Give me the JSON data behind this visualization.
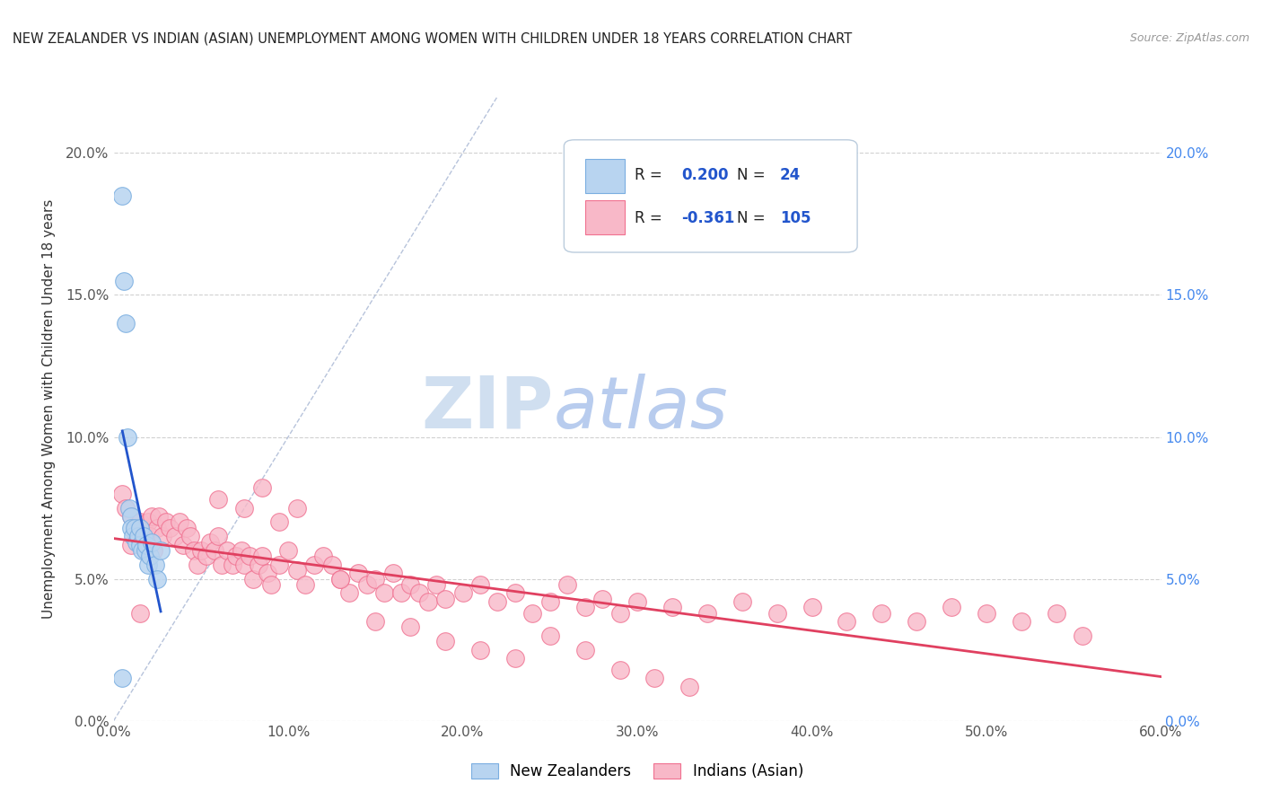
{
  "title": "NEW ZEALANDER VS INDIAN (ASIAN) UNEMPLOYMENT AMONG WOMEN WITH CHILDREN UNDER 18 YEARS CORRELATION CHART",
  "source": "Source: ZipAtlas.com",
  "ylabel": "Unemployment Among Women with Children Under 18 years",
  "xlim": [
    0.0,
    0.6
  ],
  "ylim": [
    0.0,
    0.22
  ],
  "xticks": [
    0.0,
    0.1,
    0.2,
    0.3,
    0.4,
    0.5,
    0.6
  ],
  "xtick_labels": [
    "0.0%",
    "10.0%",
    "20.0%",
    "30.0%",
    "40.0%",
    "50.0%",
    "60.0%"
  ],
  "yticks": [
    0.0,
    0.05,
    0.1,
    0.15,
    0.2
  ],
  "ytick_labels": [
    "0.0%",
    "5.0%",
    "10.0%",
    "15.0%",
    "20.0%"
  ],
  "legend_r_nz": "0.200",
  "legend_n_nz": "24",
  "legend_r_ind": "-0.361",
  "legend_n_ind": "105",
  "nz_fill": "#b8d4f0",
  "nz_edge": "#7aaee0",
  "ind_fill": "#f8b8c8",
  "ind_edge": "#f07090",
  "nz_trend_color": "#2255cc",
  "ind_trend_color": "#e04060",
  "ref_line_color": "#99aacc",
  "watermark_color": "#d0dff0",
  "background_color": "#ffffff",
  "legend_text_color": "#222222",
  "legend_val_color": "#2255cc",
  "nz_x": [
    0.005,
    0.006,
    0.007,
    0.008,
    0.009,
    0.01,
    0.01,
    0.011,
    0.012,
    0.013,
    0.014,
    0.015,
    0.015,
    0.016,
    0.017,
    0.018,
    0.019,
    0.02,
    0.021,
    0.022,
    0.024,
    0.025,
    0.027,
    0.005
  ],
  "nz_y": [
    0.185,
    0.155,
    0.14,
    0.1,
    0.075,
    0.072,
    0.068,
    0.065,
    0.068,
    0.063,
    0.065,
    0.068,
    0.062,
    0.06,
    0.065,
    0.06,
    0.062,
    0.055,
    0.058,
    0.063,
    0.055,
    0.05,
    0.06,
    0.015
  ],
  "ind_x": [
    0.005,
    0.007,
    0.01,
    0.012,
    0.014,
    0.015,
    0.016,
    0.017,
    0.018,
    0.019,
    0.02,
    0.021,
    0.022,
    0.023,
    0.025,
    0.026,
    0.028,
    0.03,
    0.032,
    0.035,
    0.038,
    0.04,
    0.042,
    0.044,
    0.046,
    0.048,
    0.05,
    0.053,
    0.055,
    0.058,
    0.06,
    0.062,
    0.065,
    0.068,
    0.07,
    0.073,
    0.075,
    0.078,
    0.08,
    0.083,
    0.085,
    0.088,
    0.09,
    0.095,
    0.1,
    0.105,
    0.11,
    0.115,
    0.12,
    0.125,
    0.13,
    0.135,
    0.14,
    0.145,
    0.15,
    0.155,
    0.16,
    0.165,
    0.17,
    0.175,
    0.18,
    0.185,
    0.19,
    0.2,
    0.21,
    0.22,
    0.23,
    0.24,
    0.25,
    0.26,
    0.27,
    0.28,
    0.29,
    0.3,
    0.32,
    0.34,
    0.36,
    0.38,
    0.4,
    0.42,
    0.44,
    0.46,
    0.48,
    0.5,
    0.52,
    0.54,
    0.555,
    0.06,
    0.075,
    0.085,
    0.095,
    0.105,
    0.13,
    0.15,
    0.17,
    0.19,
    0.21,
    0.23,
    0.25,
    0.27,
    0.29,
    0.31,
    0.33,
    0.01,
    0.015
  ],
  "ind_y": [
    0.08,
    0.075,
    0.072,
    0.068,
    0.065,
    0.07,
    0.062,
    0.068,
    0.065,
    0.06,
    0.07,
    0.065,
    0.072,
    0.06,
    0.068,
    0.072,
    0.065,
    0.07,
    0.068,
    0.065,
    0.07,
    0.062,
    0.068,
    0.065,
    0.06,
    0.055,
    0.06,
    0.058,
    0.063,
    0.06,
    0.065,
    0.055,
    0.06,
    0.055,
    0.058,
    0.06,
    0.055,
    0.058,
    0.05,
    0.055,
    0.058,
    0.052,
    0.048,
    0.055,
    0.06,
    0.053,
    0.048,
    0.055,
    0.058,
    0.055,
    0.05,
    0.045,
    0.052,
    0.048,
    0.05,
    0.045,
    0.052,
    0.045,
    0.048,
    0.045,
    0.042,
    0.048,
    0.043,
    0.045,
    0.048,
    0.042,
    0.045,
    0.038,
    0.042,
    0.048,
    0.04,
    0.043,
    0.038,
    0.042,
    0.04,
    0.038,
    0.042,
    0.038,
    0.04,
    0.035,
    0.038,
    0.035,
    0.04,
    0.038,
    0.035,
    0.038,
    0.03,
    0.078,
    0.075,
    0.082,
    0.07,
    0.075,
    0.05,
    0.035,
    0.033,
    0.028,
    0.025,
    0.022,
    0.03,
    0.025,
    0.018,
    0.015,
    0.012,
    0.062,
    0.038
  ]
}
